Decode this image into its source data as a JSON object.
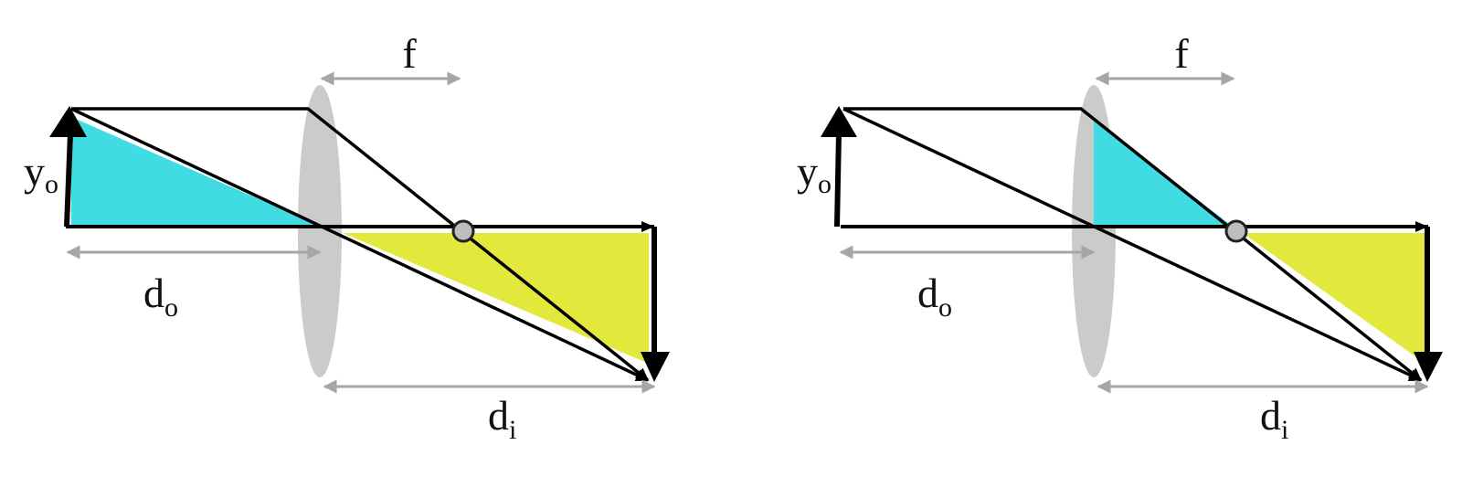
{
  "colors": {
    "lens": "#cbcbcb",
    "object_triangle": "#40dbe3",
    "image_triangle": "#e2e83c",
    "dimension_arrow": "#a6a6a6",
    "ray": "#000000",
    "focal_point": "#bdbdbd"
  },
  "diagrams": [
    {
      "focal_label": {
        "main": "f",
        "sub": ""
      },
      "object_height_label": {
        "main": "y",
        "sub": "o"
      },
      "object_distance_label": {
        "main": "d",
        "sub": "o"
      },
      "image_distance_label": {
        "main": "d",
        "sub": "i"
      }
    },
    {
      "focal_label": {
        "main": "f",
        "sub": ""
      },
      "object_height_label": {
        "main": "y",
        "sub": "o"
      },
      "object_distance_label": {
        "main": "d",
        "sub": "o"
      },
      "image_distance_label": {
        "main": "d",
        "sub": "i"
      }
    }
  ]
}
